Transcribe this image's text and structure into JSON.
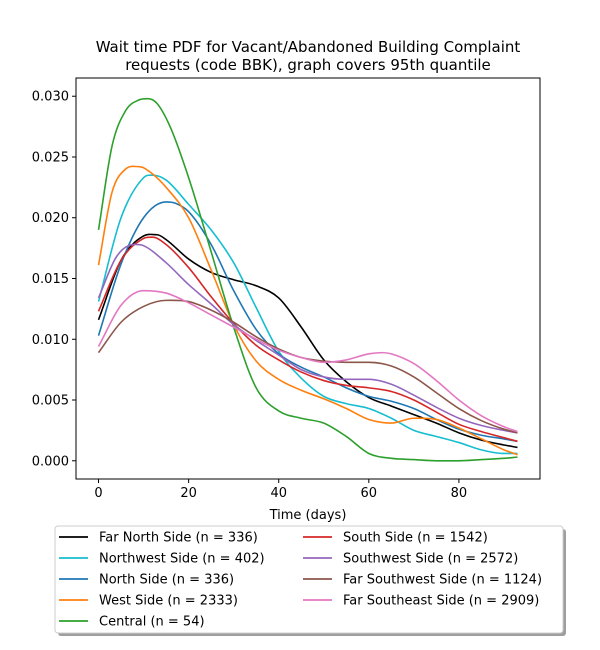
{
  "chart_data": {
    "type": "line",
    "title": [
      "Wait time PDF for Vacant/Abandoned Building Complaint",
      "requests (code BBK), graph covers 95th quantile"
    ],
    "xlabel": "Time (days)",
    "ylabel": "",
    "xlim": [
      -5,
      98
    ],
    "ylim": [
      -0.0015,
      0.0315
    ],
    "xticks": [
      0,
      20,
      40,
      60,
      80
    ],
    "xtick_labels": [
      "0",
      "20",
      "40",
      "60",
      "80"
    ],
    "yticks": [
      0.0,
      0.005,
      0.01,
      0.015,
      0.02,
      0.025,
      0.03
    ],
    "ytick_labels": [
      "0.000",
      "0.005",
      "0.010",
      "0.015",
      "0.020",
      "0.025",
      "0.030"
    ],
    "legend_position": "below plot, two columns",
    "series": [
      {
        "name": "Far North Side (n = 336)",
        "color": "#000000",
        "x": [
          0,
          5,
          10,
          13,
          15,
          20,
          25,
          30,
          35,
          40,
          45,
          50,
          55,
          60,
          65,
          70,
          75,
          80,
          85,
          90,
          93
        ],
        "y": [
          0.0116,
          0.0165,
          0.0185,
          0.0186,
          0.0182,
          0.0166,
          0.0155,
          0.0149,
          0.0144,
          0.0134,
          0.011,
          0.0083,
          0.0065,
          0.0052,
          0.0045,
          0.0038,
          0.0031,
          0.0023,
          0.0017,
          0.0013,
          0.0011
        ]
      },
      {
        "name": "Northwest Side (n = 402)",
        "color": "#17becf",
        "x": [
          0,
          5,
          10,
          12,
          15,
          20,
          25,
          30,
          35,
          40,
          45,
          50,
          55,
          60,
          65,
          70,
          75,
          80,
          85,
          90,
          93
        ],
        "y": [
          0.0131,
          0.02,
          0.0233,
          0.0235,
          0.0231,
          0.0211,
          0.019,
          0.0163,
          0.0126,
          0.009,
          0.0068,
          0.0053,
          0.0047,
          0.0043,
          0.0035,
          0.0025,
          0.002,
          0.0015,
          0.0009,
          0.0006,
          0.0006
        ]
      },
      {
        "name": "North Side (n = 336)",
        "color": "#1f77b4",
        "x": [
          0,
          5,
          10,
          15,
          17,
          20,
          25,
          30,
          35,
          40,
          45,
          50,
          55,
          60,
          65,
          70,
          75,
          80,
          85,
          90,
          93
        ],
        "y": [
          0.0103,
          0.0162,
          0.02,
          0.0213,
          0.0212,
          0.0205,
          0.0178,
          0.014,
          0.0108,
          0.0088,
          0.0077,
          0.0069,
          0.006,
          0.0053,
          0.0049,
          0.0043,
          0.0034,
          0.0026,
          0.0021,
          0.0018,
          0.0016
        ]
      },
      {
        "name": "West Side (n = 2333)",
        "color": "#ff7f0e",
        "x": [
          0,
          3,
          6,
          9,
          12,
          15,
          20,
          25,
          30,
          35,
          40,
          45,
          50,
          55,
          60,
          65,
          70,
          75,
          80,
          85,
          90,
          93
        ],
        "y": [
          0.0161,
          0.0221,
          0.024,
          0.0242,
          0.0236,
          0.0225,
          0.02,
          0.0157,
          0.0112,
          0.0082,
          0.0067,
          0.0058,
          0.0051,
          0.0043,
          0.0034,
          0.0031,
          0.0035,
          0.0034,
          0.0027,
          0.0018,
          0.0009,
          0.0005
        ]
      },
      {
        "name": "Central (n = 54)",
        "color": "#2ca02c",
        "x": [
          0,
          3,
          6,
          9,
          11,
          13,
          16,
          20,
          25,
          30,
          35,
          40,
          45,
          50,
          55,
          60,
          65,
          70,
          75,
          80,
          85,
          90,
          93
        ],
        "y": [
          0.019,
          0.0259,
          0.0288,
          0.0297,
          0.0298,
          0.0294,
          0.0274,
          0.0233,
          0.0172,
          0.011,
          0.006,
          0.0041,
          0.0035,
          0.0031,
          0.002,
          0.0006,
          0.0002,
          0.0001,
          0.0,
          0.0,
          0.0001,
          0.0002,
          0.0003
        ]
      },
      {
        "name": "South Side (n = 1542)",
        "color": "#d62728",
        "x": [
          0,
          5,
          10,
          12,
          15,
          20,
          25,
          30,
          35,
          40,
          45,
          50,
          55,
          60,
          65,
          70,
          75,
          80,
          85,
          90,
          93
        ],
        "y": [
          0.0123,
          0.0165,
          0.0183,
          0.0184,
          0.0178,
          0.0159,
          0.0135,
          0.0113,
          0.0095,
          0.0083,
          0.0073,
          0.0066,
          0.0062,
          0.006,
          0.0057,
          0.005,
          0.004,
          0.003,
          0.0024,
          0.0019,
          0.0016
        ]
      },
      {
        "name": "Southwest Side (n = 2572)",
        "color": "#9467bd",
        "x": [
          0,
          4,
          8,
          10,
          15,
          20,
          25,
          30,
          35,
          40,
          45,
          50,
          55,
          60,
          65,
          70,
          75,
          80,
          85,
          90,
          93
        ],
        "y": [
          0.0134,
          0.0168,
          0.0178,
          0.0177,
          0.0163,
          0.0145,
          0.0129,
          0.0112,
          0.0099,
          0.0087,
          0.0075,
          0.0069,
          0.0067,
          0.0067,
          0.0063,
          0.0054,
          0.0044,
          0.0035,
          0.0029,
          0.0025,
          0.0023
        ]
      },
      {
        "name": "Far Southwest Side (n = 1124)",
        "color": "#8c564b",
        "x": [
          0,
          5,
          10,
          15,
          20,
          25,
          30,
          35,
          40,
          45,
          50,
          55,
          60,
          65,
          70,
          75,
          80,
          85,
          90,
          93
        ],
        "y": [
          0.0089,
          0.0114,
          0.0127,
          0.0132,
          0.0131,
          0.0124,
          0.0114,
          0.0102,
          0.0092,
          0.0085,
          0.0082,
          0.0081,
          0.0081,
          0.0078,
          0.0069,
          0.0056,
          0.0043,
          0.0033,
          0.0026,
          0.0023
        ]
      },
      {
        "name": "Far Southeast Side (n = 2909)",
        "color": "#e377c2",
        "x": [
          0,
          5,
          10,
          15,
          20,
          25,
          30,
          35,
          40,
          45,
          50,
          55,
          60,
          63,
          65,
          70,
          75,
          80,
          85,
          90,
          93
        ],
        "y": [
          0.0094,
          0.0128,
          0.014,
          0.0138,
          0.013,
          0.012,
          0.011,
          0.01,
          0.0091,
          0.0085,
          0.0081,
          0.0083,
          0.0088,
          0.0089,
          0.0088,
          0.008,
          0.0066,
          0.005,
          0.0037,
          0.0028,
          0.0024
        ]
      }
    ]
  }
}
